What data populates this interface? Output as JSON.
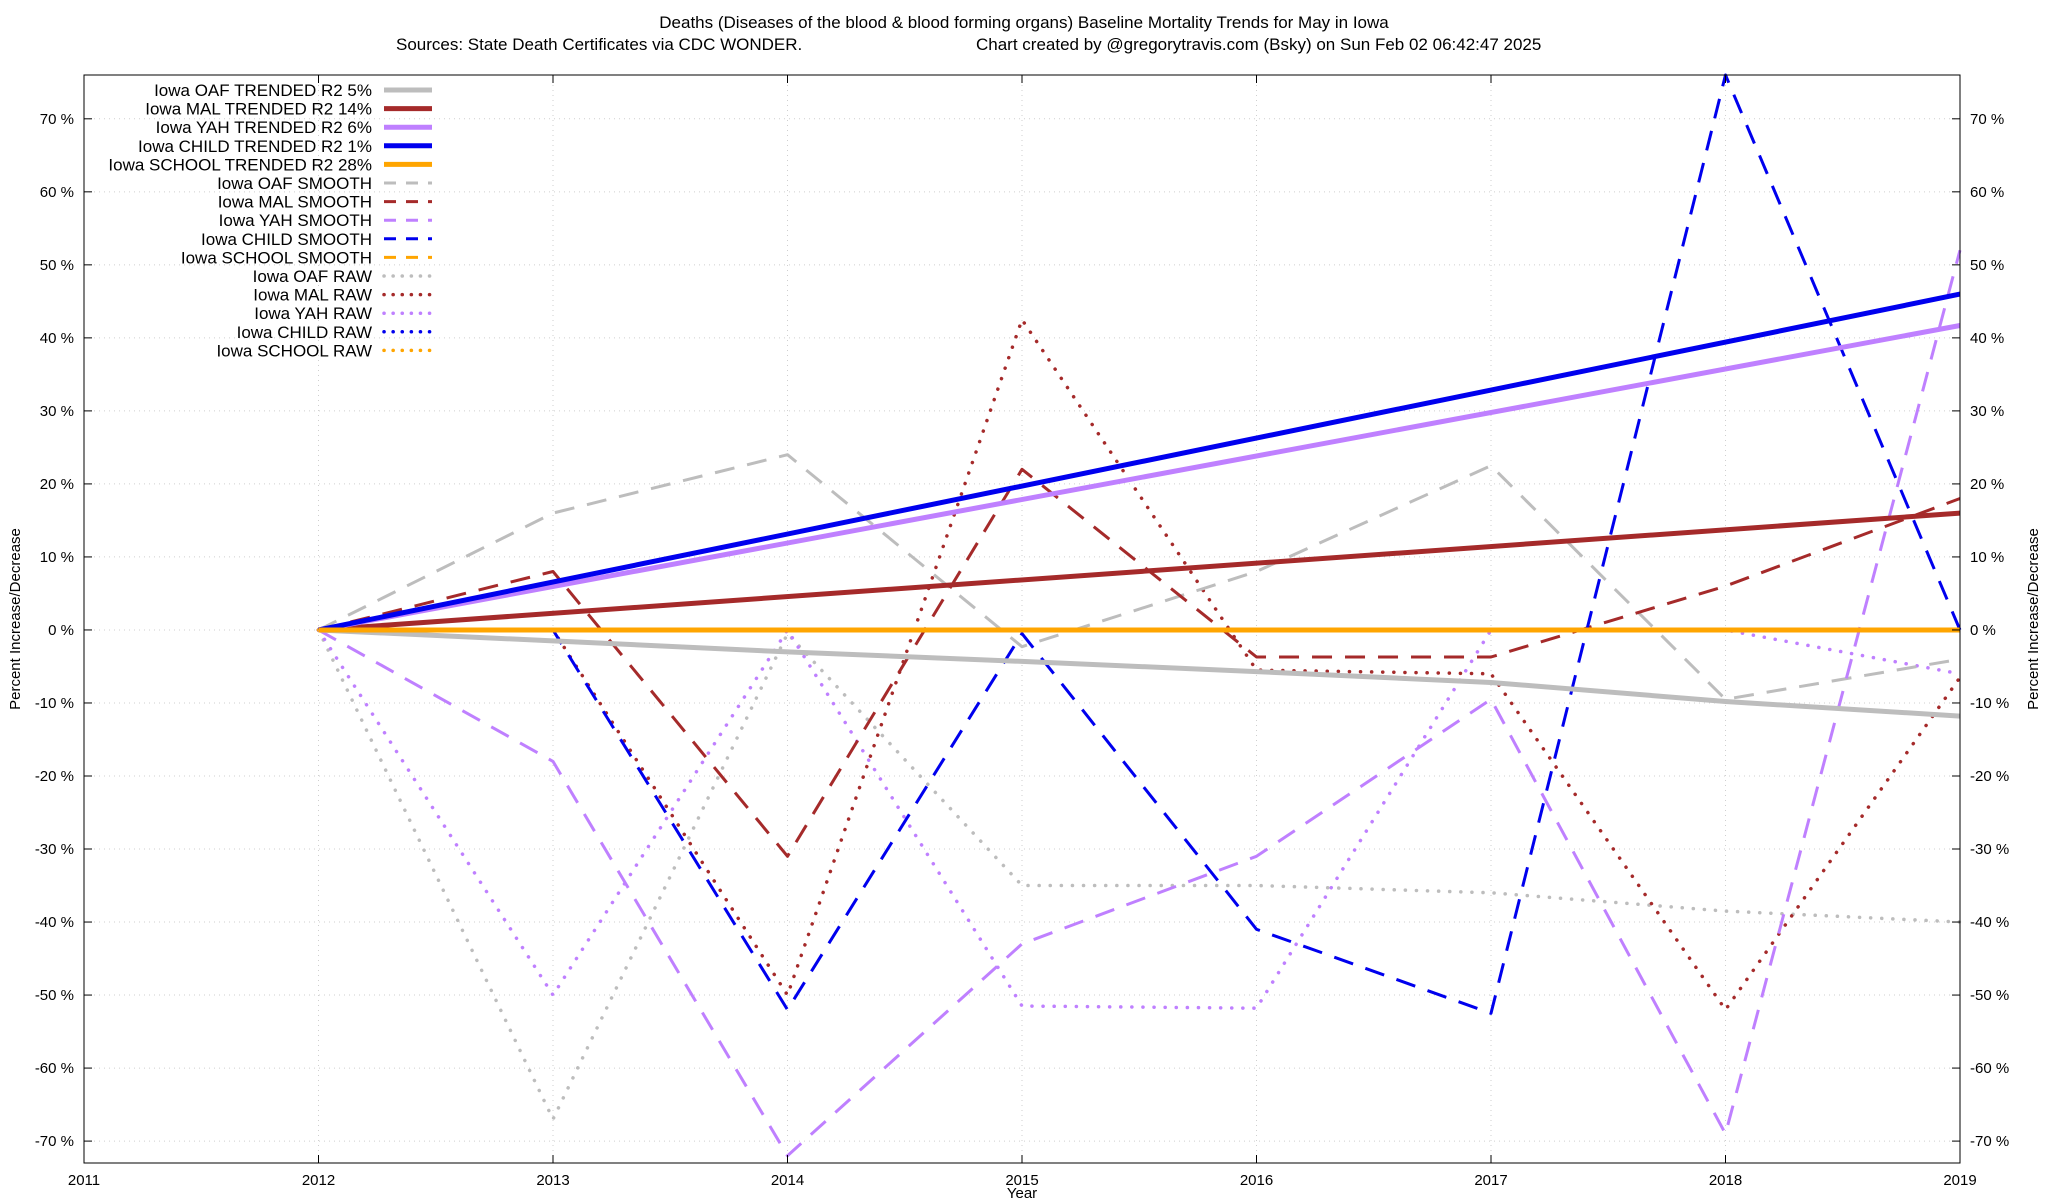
{
  "chart_data": {
    "type": "line",
    "title": "Deaths (Diseases of the blood & blood forming organs)  Baseline Mortality Trends for May in Iowa",
    "subtitle_left": "Sources: State Death Certificates via CDC WONDER.",
    "subtitle_right": "Chart created by @gregorytravis.com (Bsky) on Sun Feb 02 06:42:47 2025",
    "xlabel": "Year",
    "ylabel_left": "Percent Increase/Decrease",
    "ylabel_right": "Percent Increase/Decrease",
    "xlim": [
      2011,
      2019
    ],
    "ylim": [
      -73,
      76
    ],
    "x_ticks": [
      2011,
      2012,
      2013,
      2014,
      2015,
      2016,
      2017,
      2018,
      2019
    ],
    "x_tick_labels": [
      "2011",
      "2012",
      "2013",
      "2014",
      "2015",
      "2016",
      "2017",
      "2018",
      "2019"
    ],
    "y_ticks": [
      -70,
      -60,
      -50,
      -40,
      -30,
      -20,
      -10,
      0,
      10,
      20,
      30,
      40,
      50,
      60,
      70
    ],
    "y_tick_labels": [
      "-70 %",
      "-60 %",
      "-50 %",
      "-40 %",
      "-30 %",
      "-20 %",
      "-10 %",
      "0 %",
      "10 %",
      "20 %",
      "30 %",
      "40 %",
      "50 %",
      "60 %",
      "70 %"
    ],
    "grid": true,
    "legend_position": "top-left",
    "series": [
      {
        "name": "Iowa OAF TRENDED R2  5%",
        "style": "solid",
        "color": "#bdbdbd",
        "x": [
          2012,
          2013,
          2014,
          2015,
          2016,
          2017,
          2018,
          2019
        ],
        "y": [
          0,
          -1.5,
          -3,
          -4.3,
          -5.7,
          -7.2,
          -9.8,
          -11.8
        ]
      },
      {
        "name": "Iowa MAL TRENDED R2  14%",
        "style": "solid",
        "color": "#a52a2a",
        "x": [
          2012,
          2019
        ],
        "y": [
          0,
          16
        ]
      },
      {
        "name": "Iowa YAH TRENDED R2  6%",
        "style": "solid",
        "color": "#bf80ff",
        "x": [
          2012,
          2019
        ],
        "y": [
          0,
          41.7
        ]
      },
      {
        "name": "Iowa CHILD TRENDED R2  1%",
        "style": "solid",
        "color": "#0000ee",
        "x": [
          2012,
          2019
        ],
        "y": [
          0,
          46
        ]
      },
      {
        "name": "Iowa SCHOOL TRENDED R2  28%",
        "style": "solid",
        "color": "#ffa500",
        "x": [
          2012,
          2019
        ],
        "y": [
          0,
          0
        ]
      },
      {
        "name": "Iowa OAF SMOOTH",
        "style": "dashed",
        "color": "#bdbdbd",
        "x": [
          2012,
          2013,
          2014,
          2015,
          2016,
          2017,
          2018,
          2019
        ],
        "y": [
          0,
          16,
          24,
          -2.3,
          8,
          22.5,
          -9.5,
          -4
        ]
      },
      {
        "name": "Iowa MAL SMOOTH",
        "style": "dashed",
        "color": "#a52a2a",
        "x": [
          2012,
          2013,
          2014,
          2015,
          2016,
          2017,
          2018,
          2019
        ],
        "y": [
          0,
          8,
          -31,
          22,
          -3.7,
          -3.7,
          6,
          18
        ]
      },
      {
        "name": "Iowa YAH SMOOTH",
        "style": "dashed",
        "color": "#bf80ff",
        "x": [
          2012,
          2013,
          2014,
          2015,
          2016,
          2017,
          2018,
          2019
        ],
        "y": [
          0,
          -18,
          -72,
          -43,
          -31,
          -9.5,
          -69,
          52
        ]
      },
      {
        "name": "Iowa CHILD SMOOTH",
        "style": "dashed",
        "color": "#0000ee",
        "x": [
          2012,
          2013,
          2014,
          2015,
          2016,
          2017,
          2018,
          2019
        ],
        "y": [
          0,
          0,
          -52,
          -0.5,
          -41,
          -52.5,
          76,
          0
        ]
      },
      {
        "name": "Iowa SCHOOL SMOOTH",
        "style": "dashed",
        "color": "#ffa500",
        "x": [
          2012,
          2019
        ],
        "y": [
          0,
          0
        ]
      },
      {
        "name": "Iowa OAF RAW",
        "style": "dotted",
        "color": "#bdbdbd",
        "x": [
          2012,
          2013,
          2014,
          2015,
          2016,
          2017,
          2018,
          2019
        ],
        "y": [
          0,
          -67,
          -0.5,
          -35,
          -35,
          -36,
          -38.5,
          -40
        ]
      },
      {
        "name": "Iowa MAL RAW",
        "style": "dotted",
        "color": "#a52a2a",
        "x": [
          2012,
          2013,
          2014,
          2015,
          2016,
          2017,
          2018,
          2019
        ],
        "y": [
          0,
          0,
          -50,
          42.5,
          -5.5,
          -6,
          -52,
          -6.5
        ]
      },
      {
        "name": "Iowa YAH RAW",
        "style": "dotted",
        "color": "#bf80ff",
        "x": [
          2012,
          2013,
          2014,
          2015,
          2016,
          2017,
          2018,
          2019
        ],
        "y": [
          0,
          -50,
          0,
          -51.5,
          -51.8,
          0,
          0,
          -6
        ]
      },
      {
        "name": "Iowa CHILD RAW",
        "style": "dotted",
        "color": "#0000ee",
        "x": [
          2012,
          2019
        ],
        "y": [
          0,
          0
        ]
      },
      {
        "name": "Iowa SCHOOL RAW",
        "style": "dotted",
        "color": "#ffa500",
        "x": [
          2012,
          2019
        ],
        "y": [
          0,
          0
        ]
      }
    ]
  }
}
